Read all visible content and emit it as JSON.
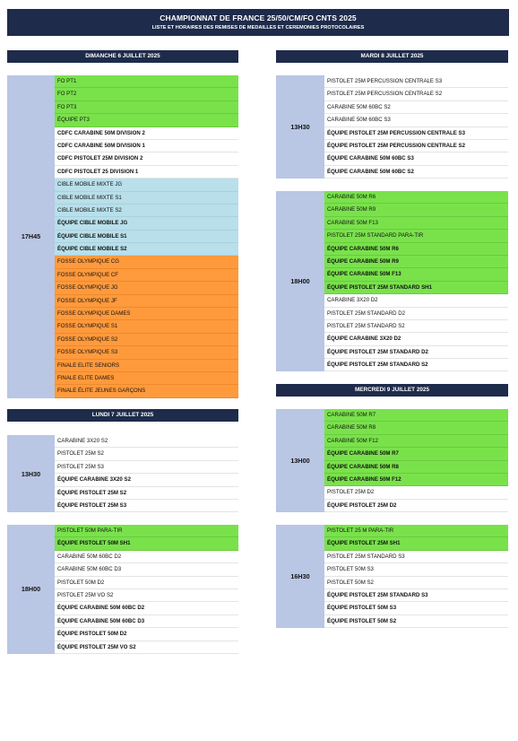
{
  "header": {
    "title": "CHAMPIONNAT DE FRANCE 25/50/CM/FO CNTS 2025",
    "subtitle": "LISTE ET HORAIRES DES REMISES DE MEDAILLES ET CEREMONIES PROTOCOLAIRES"
  },
  "days": {
    "d1": "DIMANCHE 6 JUILLET 2025",
    "d2": "LUNDI 7 JUILLET 2025",
    "d3": "MARDI 8 JUILLET 2025",
    "d4": "MERCREDI 9 JUILLET 2025"
  },
  "blocks": {
    "sun_1745": {
      "time": "17H45",
      "rows": [
        {
          "label": "FO PT1",
          "color": "green",
          "bold": false
        },
        {
          "label": "FO PT2",
          "color": "green",
          "bold": false
        },
        {
          "label": "FO PT3",
          "color": "green",
          "bold": false
        },
        {
          "label": "ÉQUIPE PT3",
          "color": "green",
          "bold": false
        },
        {
          "label": "CDFC CARABINE 50M DIVISION 2",
          "color": "white",
          "bold": true
        },
        {
          "label": "CDFC CARABINE 50M DIVISION 1",
          "color": "white",
          "bold": true
        },
        {
          "label": "CDFC PISTOLET 25M DIVISION 2",
          "color": "white",
          "bold": true
        },
        {
          "label": "CDFC PISTOLET 25 DIVISION 1",
          "color": "white",
          "bold": true
        },
        {
          "label": "CIBLE MOBILE MIXTE JG",
          "color": "blue",
          "bold": false
        },
        {
          "label": "CIBLE MOBILE MIXTE S1",
          "color": "blue",
          "bold": false
        },
        {
          "label": "CIBLE MOBILE MIXTE S2",
          "color": "blue",
          "bold": false
        },
        {
          "label": "ÉQUIPE CIBLE MOBILE JG",
          "color": "blue",
          "bold": true
        },
        {
          "label": "ÉQUIPE CIBLE MOBILE S1",
          "color": "blue",
          "bold": true
        },
        {
          "label": "ÉQUIPE CIBLE MOBILE S2",
          "color": "blue",
          "bold": true
        },
        {
          "label": "FOSSE OLYMPIQUE CG",
          "color": "orange",
          "bold": false
        },
        {
          "label": "FOSSE OLYMPIQUE CF",
          "color": "orange",
          "bold": false
        },
        {
          "label": "FOSSE OLYMPIQUE JG",
          "color": "orange",
          "bold": false
        },
        {
          "label": "FOSSE OLYMPIQUE JF",
          "color": "orange",
          "bold": false
        },
        {
          "label": "FOSSE OLYMPIQUE DAMES",
          "color": "orange",
          "bold": false
        },
        {
          "label": "FOSSE OLYMPIQUE S1",
          "color": "orange",
          "bold": false
        },
        {
          "label": "FOSSE OLYMPIQUE S2",
          "color": "orange",
          "bold": false
        },
        {
          "label": "FOSSE OLYMPIQUE S3",
          "color": "orange",
          "bold": false
        },
        {
          "label": "FINALE ELITE SENIORS",
          "color": "orange",
          "bold": false
        },
        {
          "label": "FINALE ELITE DAMES",
          "color": "orange",
          "bold": false
        },
        {
          "label": "FINALE ÉLITE JEUNES GARÇONS",
          "color": "orange",
          "bold": false
        }
      ]
    },
    "mon_1330": {
      "time": "13H30",
      "rows": [
        {
          "label": "CARABINE 3X20 S2",
          "color": "white",
          "bold": false
        },
        {
          "label": "PISTOLET 25M S2",
          "color": "white",
          "bold": false
        },
        {
          "label": "PISTOLET 25M S3",
          "color": "white",
          "bold": false
        },
        {
          "label": "ÉQUIPE CARABINE 3X20 S2",
          "color": "white",
          "bold": true
        },
        {
          "label": "ÉQUIPE PISTOLET 25M S2",
          "color": "white",
          "bold": true
        },
        {
          "label": "ÉQUIPE PISTOLET 25M S3",
          "color": "white",
          "bold": true
        }
      ]
    },
    "mon_1800": {
      "time": "18H00",
      "rows": [
        {
          "label": "PISTOLET 50M PARA-TIR",
          "color": "green",
          "bold": false
        },
        {
          "label": "ÉQUIPE PISTOLET 50M SH1",
          "color": "green",
          "bold": true
        },
        {
          "label": "CARABINE 50M 60BC D2",
          "color": "white",
          "bold": false
        },
        {
          "label": "CARABINE 50M 60BC D3",
          "color": "white",
          "bold": false
        },
        {
          "label": "PISTOLET 50M D2",
          "color": "white",
          "bold": false
        },
        {
          "label": "PISTOLET 25M VO S2",
          "color": "white",
          "bold": false
        },
        {
          "label": "ÉQUIPE CARABINE 50M 60BC D2",
          "color": "white",
          "bold": true
        },
        {
          "label": "ÉQUIPE CARABINE 50M 60BC D3",
          "color": "white",
          "bold": true
        },
        {
          "label": "ÉQUIPE PISTOLET 50M D2",
          "color": "white",
          "bold": true
        },
        {
          "label": "ÉQUIPE PISTOLET 25M VO S2",
          "color": "white",
          "bold": true
        }
      ]
    },
    "tue_1330": {
      "time": "13H30",
      "rows": [
        {
          "label": "PISTOLET 25M PERCUSSION CENTRALE S3",
          "color": "white",
          "bold": false
        },
        {
          "label": "PISTOLET 25M PERCUSSION CENTRALE S2",
          "color": "white",
          "bold": false
        },
        {
          "label": "CARABINE 50M 60BC S2",
          "color": "white",
          "bold": false
        },
        {
          "label": "CARABINE 50M 60BC S3",
          "color": "white",
          "bold": false
        },
        {
          "label": "ÉQUIPE PISTOLET 25M PERCUSSION CENTRALE S3",
          "color": "white",
          "bold": true
        },
        {
          "label": "ÉQUIPE PISTOLET 25M PERCUSSION CENTRALE S2",
          "color": "white",
          "bold": true
        },
        {
          "label": "ÉQUIPE CARABINE 50M 60BC S3",
          "color": "white",
          "bold": true
        },
        {
          "label": "ÉQUIPE CARABINE 50M 60BC S2",
          "color": "white",
          "bold": true
        }
      ]
    },
    "tue_1800": {
      "time": "18H00",
      "rows": [
        {
          "label": "CARABINE 50M R6",
          "color": "green",
          "bold": false
        },
        {
          "label": "CARABINE 50M R9",
          "color": "green",
          "bold": false
        },
        {
          "label": "CARABINE 50M F13",
          "color": "green",
          "bold": false
        },
        {
          "label": "PISTOLET 25M STANDARD PARA-TIR",
          "color": "green",
          "bold": false
        },
        {
          "label": "ÉQUIPE CARABINE 50M R6",
          "color": "green",
          "bold": true
        },
        {
          "label": "ÉQUIPE CARABINE 50M R9",
          "color": "green",
          "bold": true
        },
        {
          "label": "ÉQUIPE CARABINE 50M F13",
          "color": "green",
          "bold": true
        },
        {
          "label": "ÉQUIPE PISTOLET 25M STANDARD SH1",
          "color": "green",
          "bold": true
        },
        {
          "label": "CARABINE 3X20 D2",
          "color": "white",
          "bold": false
        },
        {
          "label": "PISTOLET 25M STANDARD D2",
          "color": "white",
          "bold": false
        },
        {
          "label": "PISTOLET 25M STANDARD S2",
          "color": "white",
          "bold": false
        },
        {
          "label": "ÉQUIPE CARABINE 3X20 D2",
          "color": "white",
          "bold": true
        },
        {
          "label": "ÉQUIPE PISTOLET 25M STANDARD D2",
          "color": "white",
          "bold": true
        },
        {
          "label": "ÉQUIPE PISTOLET 25M STANDARD S2",
          "color": "white",
          "bold": true
        }
      ]
    },
    "wed_1300": {
      "time": "13H00",
      "rows": [
        {
          "label": "CARABINE 50M R7",
          "color": "green",
          "bold": false
        },
        {
          "label": "CARABINE 50M R8",
          "color": "green",
          "bold": false
        },
        {
          "label": "CARABINE 50M F12",
          "color": "green",
          "bold": false
        },
        {
          "label": "ÉQUIPE CARABINE 50M R7",
          "color": "green",
          "bold": true
        },
        {
          "label": "ÉQUIPE CARABINE 50M R8",
          "color": "green",
          "bold": true
        },
        {
          "label": "ÉQUIPE CARABINE 50M F12",
          "color": "green",
          "bold": true
        },
        {
          "label": "PISTOLET 25M D2",
          "color": "white",
          "bold": false
        },
        {
          "label": "ÉQUIPE PISTOLET 25M D2",
          "color": "white",
          "bold": true
        }
      ]
    },
    "wed_1630": {
      "time": "16H30",
      "rows": [
        {
          "label": "PISTOLET 25 M PARA-TIR",
          "color": "green",
          "bold": false
        },
        {
          "label": "ÉQUIPE PISTOLET 25M SH1",
          "color": "green",
          "bold": true
        },
        {
          "label": "PISTOLET 25M STANDARD S3",
          "color": "white",
          "bold": false
        },
        {
          "label": "PISTOLET 50M S3",
          "color": "white",
          "bold": false
        },
        {
          "label": "PISTOLET 50M S2",
          "color": "white",
          "bold": false
        },
        {
          "label": "ÉQUIPE PISTOLET 25M STANDARD S3",
          "color": "white",
          "bold": true
        },
        {
          "label": "ÉQUIPE PISTOLET 50M S3",
          "color": "white",
          "bold": true
        },
        {
          "label": "ÉQUIPE PISTOLET 50M S2",
          "color": "white",
          "bold": true
        }
      ]
    }
  }
}
